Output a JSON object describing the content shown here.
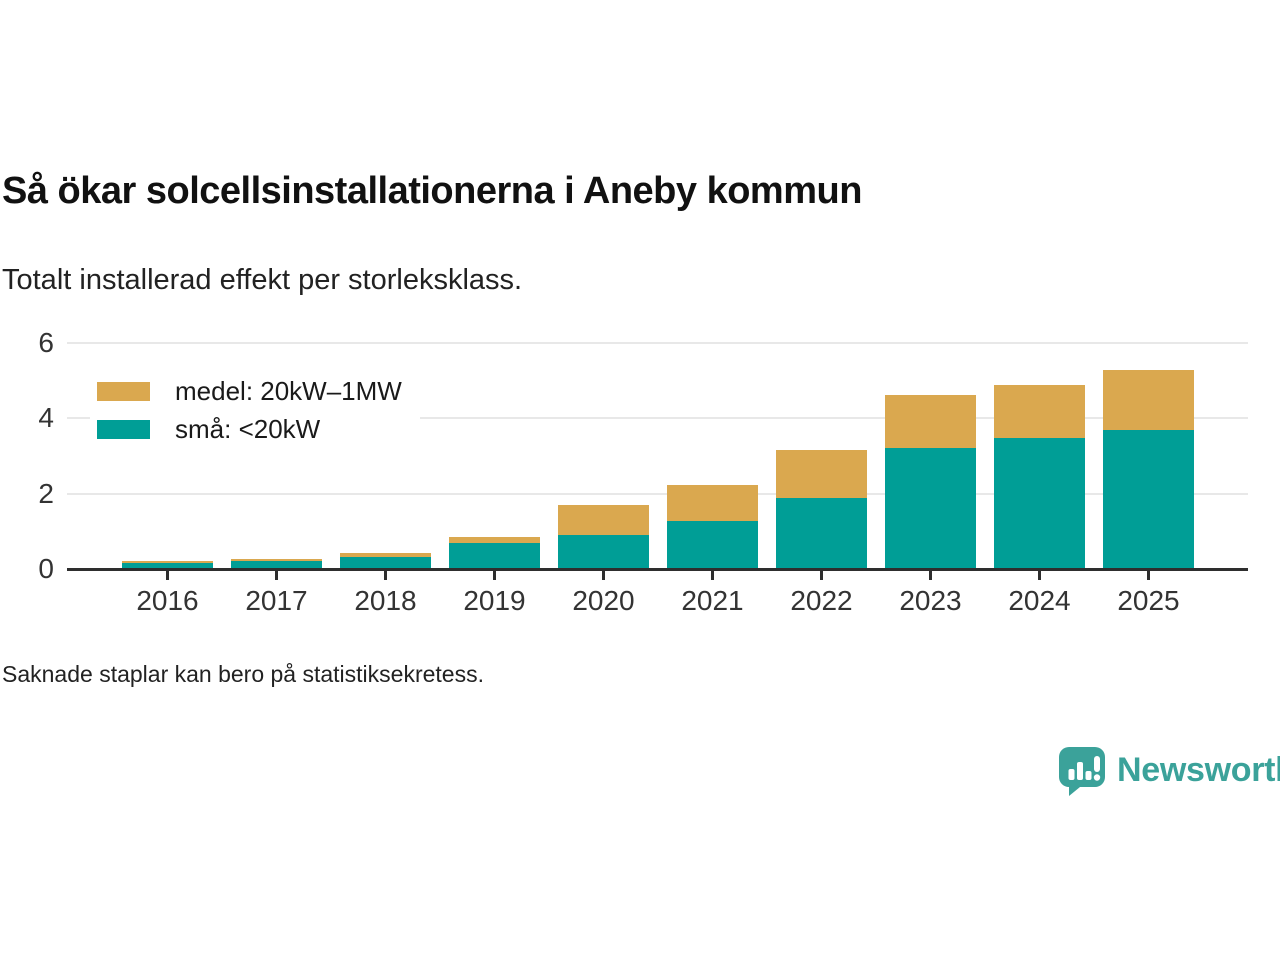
{
  "title": "Så ökar solcellsinstallationerna i Aneby kommun",
  "subtitle": "Totalt installerad effekt per storleksklass.",
  "footnote": "Saknade staplar kan bero på statistiksekretess.",
  "brand": {
    "name": "Newsworthy",
    "logo_icon": "bar-chart-speech-bubble-icon",
    "color": "#3BA29A"
  },
  "chart_data": {
    "type": "bar",
    "stacked": true,
    "title": "Så ökar solcellsinstallationerna i Aneby kommun",
    "subtitle": "Totalt installerad effekt per storleksklass.",
    "categories": [
      "2016",
      "2017",
      "2018",
      "2019",
      "2020",
      "2021",
      "2022",
      "2023",
      "2024",
      "2025"
    ],
    "series": [
      {
        "name": "medel: 20kW–1MW",
        "color": "#DAA84F",
        "values": [
          0.04,
          0.06,
          0.1,
          0.18,
          0.81,
          0.95,
          1.28,
          1.42,
          1.41,
          1.61
        ]
      },
      {
        "name": "små: <20kW",
        "color": "#009E96",
        "values": [
          0.16,
          0.21,
          0.32,
          0.68,
          0.89,
          1.27,
          1.88,
          3.2,
          3.47,
          3.68
        ]
      }
    ],
    "totals": [
      0.2,
      0.27,
      0.42,
      0.86,
      1.7,
      2.22,
      3.16,
      4.62,
      4.88,
      5.29
    ],
    "xlabel": "",
    "ylabel": "",
    "ylim": [
      0,
      6
    ],
    "yticks": [
      0,
      2,
      4,
      6
    ],
    "grid": true,
    "legend_position": "top-left",
    "axis_color": "#2E2E2E",
    "grid_color": "#E8E8E8",
    "note": "missing bars may be due to statistical confidentiality"
  }
}
